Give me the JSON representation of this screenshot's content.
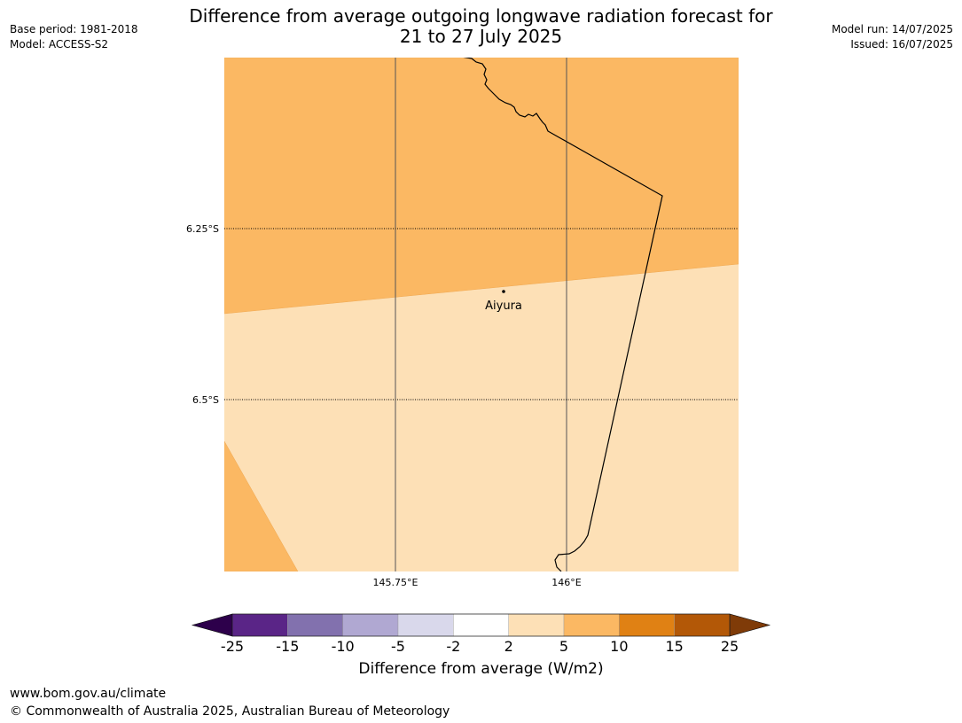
{
  "header": {
    "title_line1": "Difference from average outgoing longwave radiation forecast for",
    "title_line2": "21 to 27 July 2025",
    "base_period": "Base period: 1981-2018",
    "model": "Model: ACCESS-S2",
    "model_run": "Model run: 14/07/2025",
    "issued": "Issued: 16/07/2025"
  },
  "map": {
    "place_label": "Aiyura",
    "lat_labels": [
      "6.25°S",
      "6.5°S"
    ],
    "lon_labels": [
      "145.75°E",
      "146°E"
    ]
  },
  "colorbar": {
    "label": "Difference from average (W/m2)",
    "ticks": [
      "-25",
      "-15",
      "-10",
      "-5",
      "-2",
      "2",
      "5",
      "10",
      "15",
      "25"
    ],
    "colors": [
      "#5a2587",
      "#8271ae",
      "#b0a8d2",
      "#d9d8eb",
      "#ffffff",
      "#fde0b6",
      "#fbb863",
      "#e08114",
      "#b35807"
    ],
    "under_color": "#2d004b",
    "over_color": "#7f3b08"
  },
  "footer": {
    "url": "www.bom.gov.au/climate",
    "copyright": "© Commonwealth of Australia 2025, Australian Bureau of Meteorology"
  }
}
